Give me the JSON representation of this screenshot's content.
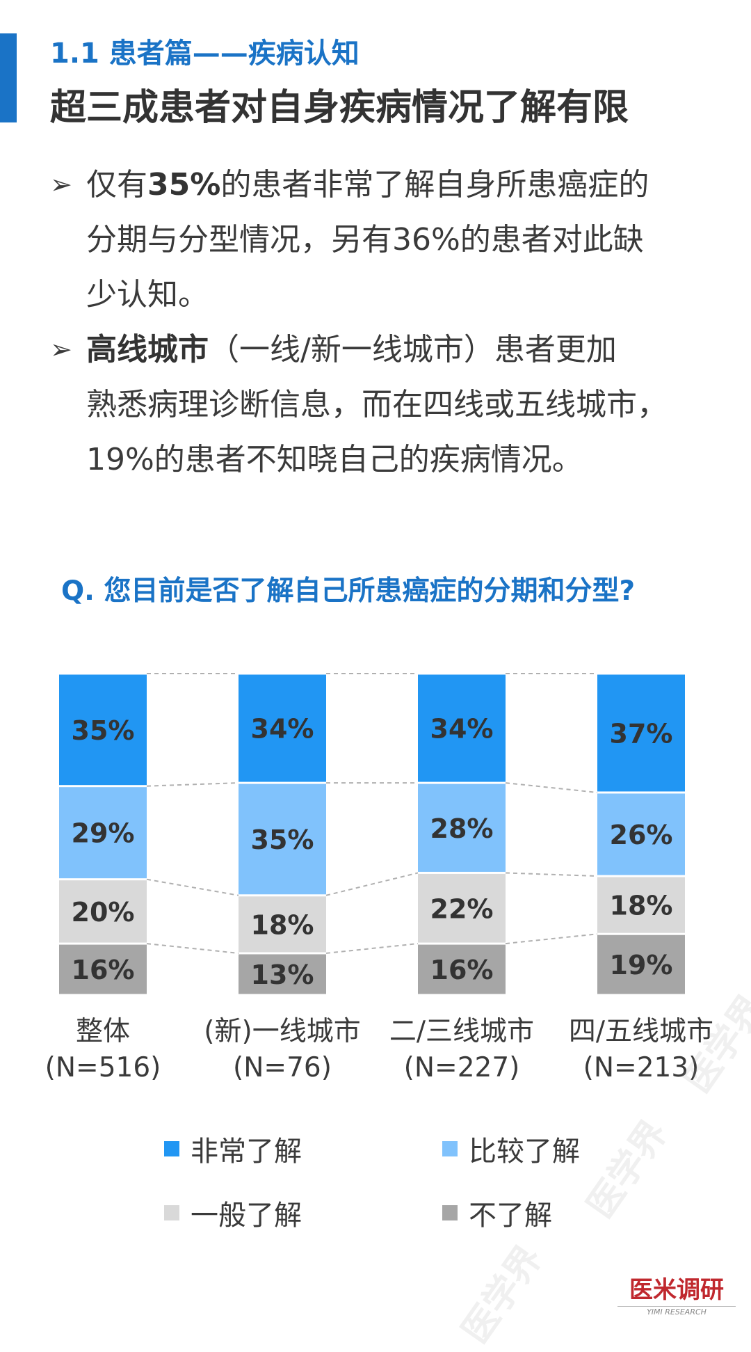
{
  "header": {
    "section_label": "1.1 患者篇——疾病认知",
    "title": "超三成患者对自身疾病情况了解有限"
  },
  "bullets": [
    {
      "marker": "➢",
      "lines": [
        [
          {
            "text": "仅有",
            "bold": false
          },
          {
            "text": "35%",
            "bold": true
          },
          {
            "text": "的患者非常了解自身所患癌症的",
            "bold": false
          }
        ],
        [
          {
            "text": "分期与分型情况，另有36%的患者对此缺",
            "bold": false
          }
        ],
        [
          {
            "text": "少认知。",
            "bold": false
          }
        ]
      ]
    },
    {
      "marker": "➢",
      "lines": [
        [
          {
            "text": "高线城市",
            "bold": true
          },
          {
            "text": "（一线/新一线城市）患者更加",
            "bold": false
          }
        ],
        [
          {
            "text": "熟悉病理诊断信息，而在四线或五线城市，",
            "bold": false
          }
        ],
        [
          {
            "text": "19%的患者不知晓自己的疾病情况。",
            "bold": false
          }
        ]
      ]
    }
  ],
  "question": "Q. 您目前是否了解自己所患癌症的分期和分型?",
  "colors": {
    "accent": "#1a73c6",
    "very": "#2196f3",
    "fairly": "#80c2fc",
    "average": "#d9d9d9",
    "none": "#a6a6a6"
  },
  "chart_data": {
    "type": "bar",
    "stacked": true,
    "percent": true,
    "categories": [
      [
        "整体",
        "(N=516)"
      ],
      [
        "(新)一线城市",
        "(N=76)"
      ],
      [
        "二/三线城市",
        "(N=227)"
      ],
      [
        "四/五线城市",
        "(N=213)"
      ]
    ],
    "series": [
      {
        "name": "非常了解",
        "values": [
          35,
          34,
          34,
          37
        ],
        "color": "#2196f3"
      },
      {
        "name": "比较了解",
        "values": [
          29,
          35,
          28,
          26
        ],
        "color": "#80c2fc"
      },
      {
        "name": "一般了解",
        "values": [
          20,
          18,
          22,
          18
        ],
        "color": "#d9d9d9"
      },
      {
        "name": "不了解",
        "values": [
          16,
          13,
          16,
          19
        ],
        "color": "#a6a6a6"
      }
    ],
    "ylim": [
      0,
      100
    ],
    "legend": "bottom",
    "grid": false,
    "connector_lines": true
  },
  "logo": {
    "main": "医米调研",
    "sub": "YIMI RESEARCH"
  }
}
